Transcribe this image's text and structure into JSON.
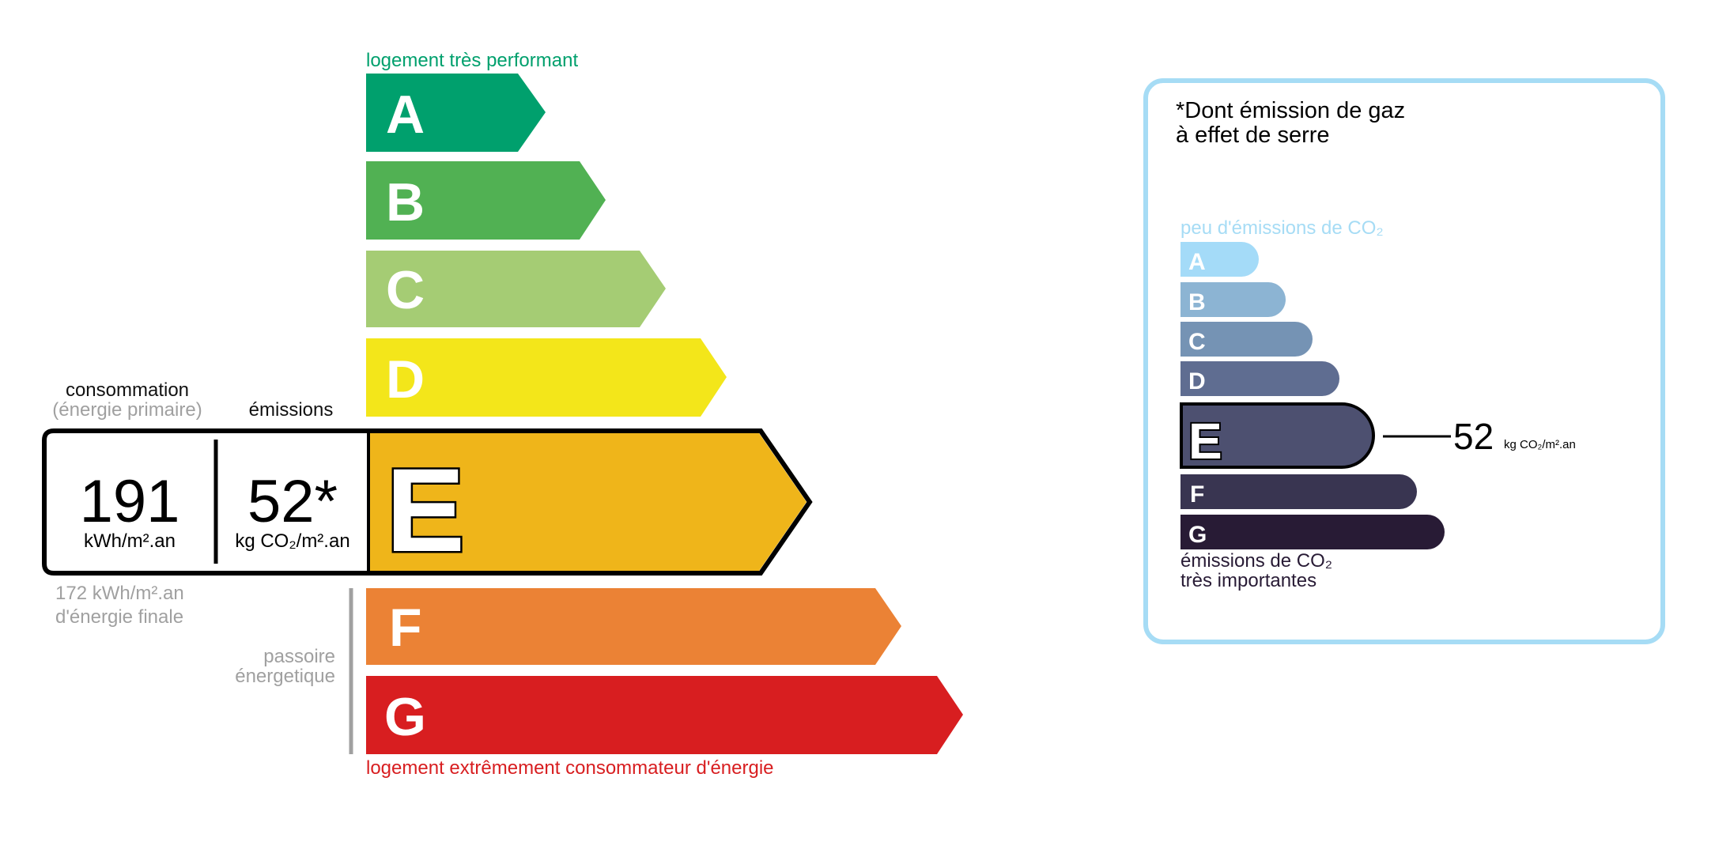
{
  "energy": {
    "top_label": "logement très performant",
    "bottom_label": "logement extrêmement consommateur d'énergie",
    "classes": [
      {
        "letter": "A",
        "color": "#00a06d"
      },
      {
        "letter": "B",
        "color": "#51b153"
      },
      {
        "letter": "C",
        "color": "#a5cc74"
      },
      {
        "letter": "D",
        "color": "#f3e61a"
      },
      {
        "letter": "E",
        "color": "#efb51a"
      },
      {
        "letter": "F",
        "color": "#eb8235"
      },
      {
        "letter": "G",
        "color": "#d81e20"
      }
    ],
    "current_class": "E",
    "consumption_label": "consommation",
    "consumption_sublabel": "(énergie primaire)",
    "emissions_label": "émissions",
    "consumption_value": "191",
    "consumption_unit": "kWh/m².an",
    "emissions_value": "52*",
    "emissions_unit": "kg CO₂/m².an",
    "final_energy_value": "172 kWh/m².an",
    "final_energy_label": "d'énergie finale",
    "passoire_line1": "passoire",
    "passoire_line2": "énergetique",
    "top_label_color": "#00a06d",
    "bottom_label_color": "#d81e20"
  },
  "ghg": {
    "title_line1": "*Dont émission de gaz",
    "title_line2": "à effet de serre",
    "top_label": "peu d'émissions de CO₂",
    "bottom_label_line1": "émissions de CO₂",
    "bottom_label_line2": "très importantes",
    "classes": [
      {
        "letter": "A",
        "color": "#a4dbf8"
      },
      {
        "letter": "B",
        "color": "#8cb4d3"
      },
      {
        "letter": "C",
        "color": "#7593b4"
      },
      {
        "letter": "D",
        "color": "#5f6d91"
      },
      {
        "letter": "E",
        "color": "#4d5070"
      },
      {
        "letter": "F",
        "color": "#393551"
      },
      {
        "letter": "G",
        "color": "#281b35"
      }
    ],
    "current_class": "E",
    "value": "52",
    "unit": "kg CO₂/m².an",
    "border_color": "#a6dcf5"
  }
}
